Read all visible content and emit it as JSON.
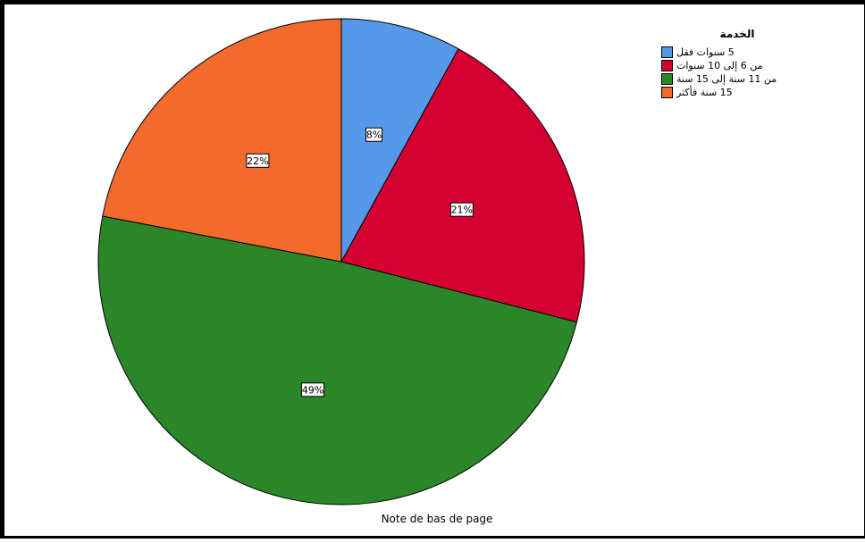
{
  "chart_data": {
    "type": "pie",
    "title": "",
    "legend_title": "الخدمة",
    "legend_position": "top-right",
    "categories": [
      "5 سنوات فقل",
      "من 6 إلى 10 سنوات",
      "من 11 سنة إلى 15 سنة",
      "15 سنة فأكثر"
    ],
    "values": [
      8,
      21,
      49,
      22
    ],
    "labels": [
      "8%",
      "21%",
      "49%",
      "22%"
    ],
    "colors": [
      "#5799E9",
      "#D50032",
      "#2A8628",
      "#F26A2C"
    ],
    "start_angle_deg": 0,
    "direction": "clockwise"
  },
  "footnote": "Note de bas de page"
}
